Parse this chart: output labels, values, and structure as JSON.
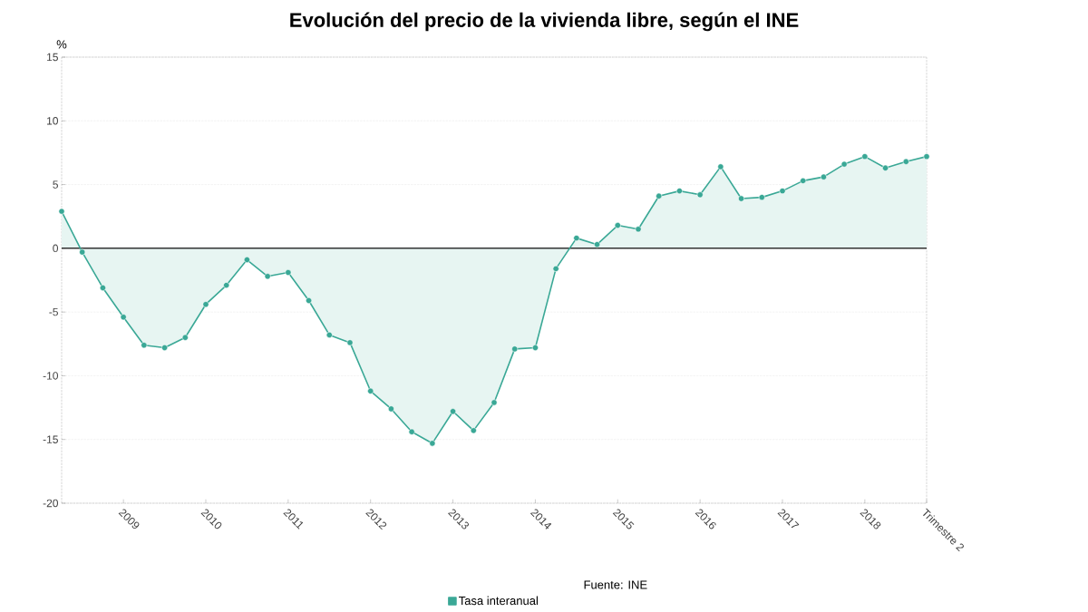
{
  "chart_data": {
    "type": "area",
    "title": "Evolución del precio de la vivienda libre, según el INE",
    "ylabel": "%",
    "categories": [
      null,
      null,
      null,
      "2009",
      null,
      null,
      null,
      "2010",
      null,
      null,
      null,
      "2011",
      null,
      null,
      null,
      "2012",
      null,
      null,
      null,
      "2013",
      null,
      null,
      null,
      "2014",
      null,
      null,
      null,
      "2015",
      null,
      null,
      null,
      "2016",
      null,
      null,
      null,
      "2017",
      null,
      null,
      null,
      "2018",
      null,
      null,
      "Trimestre 2"
    ],
    "series": [
      {
        "name": "Tasa interanual",
        "color": "#3aa896",
        "values": [
          2.9,
          -0.3,
          -3.1,
          -5.4,
          -7.6,
          -7.8,
          -7.0,
          -4.4,
          -2.9,
          -0.9,
          -2.2,
          -1.9,
          -4.1,
          -6.8,
          -7.4,
          -11.2,
          -12.6,
          -14.4,
          -15.3,
          -12.8,
          -14.3,
          -12.1,
          -7.9,
          -7.8,
          -1.6,
          0.8,
          0.3,
          1.8,
          1.5,
          4.1,
          4.5,
          4.2,
          6.4,
          3.9,
          4.0,
          4.5,
          5.3,
          5.6,
          6.6,
          7.2,
          6.3,
          6.8,
          7.2
        ]
      }
    ],
    "ylim": [
      -20,
      15
    ],
    "yticks": [
      -20,
      -15,
      -10,
      -5,
      0,
      5,
      10,
      15
    ],
    "grid": "y",
    "marker": "circle",
    "legend": "bottom",
    "ref_lines": [
      {
        "axis": "y",
        "value": 0,
        "color": "#333333"
      }
    ],
    "annotations": [
      "Fuente: INE"
    ]
  }
}
